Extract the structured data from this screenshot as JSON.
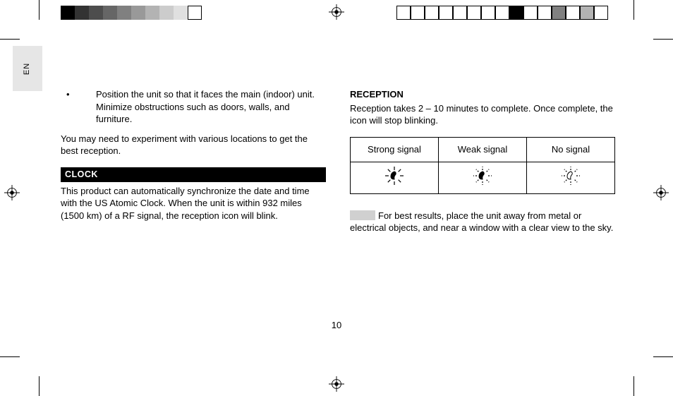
{
  "lang_tab": "EN",
  "page_number": "10",
  "left_column": {
    "bullet": "Position the unit so that it faces the main (indoor) unit.  Minimize obstructions such as doors, walls, and furniture.",
    "para1": "You may need to experiment with various locations to get the best reception.",
    "clock_heading": "CLOCK",
    "clock_body": "This product can automatically synchronize the date and time with the US Atomic Clock.  When the unit is within 932 miles (1500 km) of a RF signal, the reception icon will blink."
  },
  "right_column": {
    "reception_heading": "RECEPTION",
    "reception_body": "Reception takes 2 – 10 minutes to complete.  Once complete, the icon will stop blinking.",
    "table": {
      "headers": [
        "Strong signal",
        "Weak signal",
        "No signal"
      ]
    },
    "note": "For best results, place the unit away from metal or electrical objects, and near a window with a clear view to the sky."
  },
  "style": {
    "swatch_colors_left": [
      "#000000",
      "#333333",
      "#4d4d4d",
      "#666666",
      "#808080",
      "#999999",
      "#b3b3b3",
      "#cccccc",
      "#e0e0e0",
      "#ffffff"
    ],
    "swatch_right_filled_index": 8,
    "swatch_right_filled_color": "#000000",
    "swatch_right_gray1_index": 11,
    "swatch_right_gray1_color": "#808080",
    "swatch_right_gray2_index": 13,
    "swatch_right_gray2_color": "#b3b3b3",
    "heading_bar_bg": "#000000",
    "heading_bar_fg": "#ffffff",
    "note_swatch_color": "#d0d0d0",
    "en_tab_bg": "#e6e6e6",
    "body_font_size": 13,
    "signal_icons": {
      "strong": {
        "fill": true,
        "rays_style": "solid"
      },
      "weak": {
        "fill": true,
        "rays_style": "dashed"
      },
      "none": {
        "fill": false,
        "rays_style": "dashed"
      }
    }
  }
}
